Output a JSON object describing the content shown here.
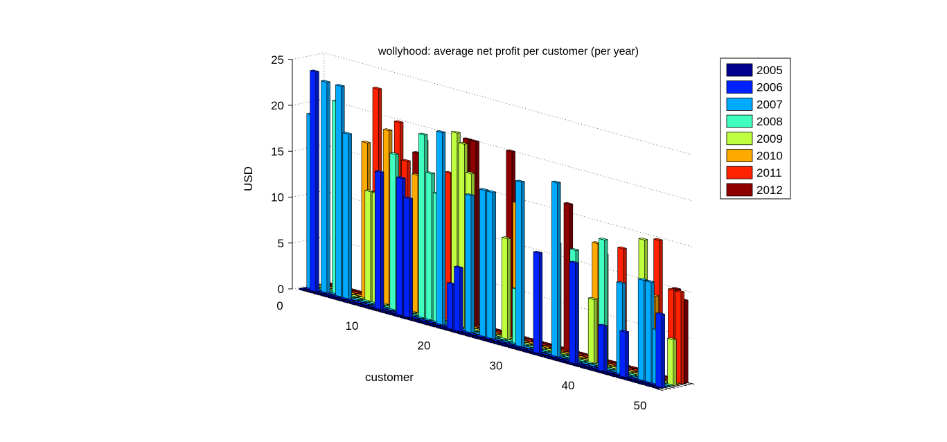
{
  "chart_data": {
    "type": "bar3d",
    "title": "wollyhood: average net profit per customer (per year)",
    "xlabel": "customer",
    "ylabel": "",
    "zlabel": "USD",
    "xlim": [
      0,
      50
    ],
    "zlim": [
      0,
      25
    ],
    "x_ticks": [
      0,
      10,
      20,
      30,
      40,
      50
    ],
    "z_ticks": [
      0,
      5,
      10,
      15,
      20,
      25
    ],
    "legend_position": "right",
    "grid": true,
    "series": [
      {
        "name": "2005",
        "color": "#00008f",
        "values": [
          0,
          0,
          0,
          0,
          0,
          0,
          0,
          0,
          0,
          0,
          0,
          0,
          0,
          0,
          0,
          0,
          0,
          0,
          0,
          0,
          0,
          0,
          0,
          0,
          0,
          0,
          0,
          0,
          0,
          0,
          0,
          0,
          0,
          0,
          0,
          0,
          0,
          0,
          0,
          0,
          0,
          0,
          0,
          0,
          0,
          0,
          0,
          0,
          0,
          0
        ]
      },
      {
        "name": "2006",
        "color": "#0022ff",
        "values": [
          0,
          24,
          0,
          0,
          0,
          0,
          0,
          0,
          0,
          0,
          15,
          0,
          0,
          15,
          13,
          0,
          0,
          0,
          0,
          0,
          5,
          7,
          0,
          0,
          0,
          0,
          0,
          0,
          0,
          0,
          0,
          0,
          11,
          0,
          0,
          0,
          0,
          11,
          0,
          0,
          0,
          5,
          0,
          0,
          5,
          0,
          0,
          0,
          0,
          8
        ]
      },
      {
        "name": "2007",
        "color": "#00aaff",
        "values": [
          19,
          0,
          23,
          0,
          23,
          18,
          0,
          0,
          0,
          0,
          0,
          0,
          0,
          0,
          0,
          0,
          0,
          0,
          21,
          0,
          0,
          0,
          15,
          0,
          16,
          16,
          0,
          0,
          0,
          18,
          0,
          0,
          0,
          0,
          19,
          0,
          0,
          0,
          0,
          0,
          0,
          0,
          0,
          10,
          0,
          0,
          11,
          11,
          6,
          0
        ]
      },
      {
        "name": "2008",
        "color": "#40ffc0",
        "values": [
          0,
          0,
          0,
          21,
          0,
          0,
          0,
          0,
          0,
          0,
          0,
          17,
          0,
          0,
          0,
          20,
          16,
          14,
          0,
          0,
          0,
          0,
          0,
          0,
          0,
          0,
          0,
          0,
          6,
          0,
          0,
          0,
          0,
          0,
          0,
          0,
          12,
          0,
          0,
          0,
          14,
          0,
          0,
          0,
          0,
          0,
          0,
          0,
          0,
          0
        ]
      },
      {
        "name": "2009",
        "color": "#c0ff40",
        "values": [
          0,
          0,
          0,
          0,
          0,
          0,
          0,
          12,
          12,
          0,
          0,
          0,
          0,
          0,
          0,
          0,
          0,
          0,
          0,
          21,
          20,
          17,
          0,
          0,
          0,
          0,
          11,
          0,
          0,
          0,
          0,
          0,
          0,
          12,
          0,
          0,
          0,
          0,
          7,
          0,
          0,
          0,
          0,
          0,
          0,
          15,
          0,
          0,
          0,
          5
        ]
      },
      {
        "name": "2010",
        "color": "#ffaa00",
        "values": [
          0,
          0,
          0,
          0,
          0,
          0,
          17,
          0,
          0,
          19,
          0,
          0,
          0,
          15,
          19,
          0,
          0,
          0,
          0,
          0,
          0,
          0,
          0,
          0,
          0,
          0,
          0,
          15,
          0,
          0,
          0,
          0,
          0,
          0,
          0,
          0,
          0,
          0,
          13,
          12,
          0,
          0,
          0,
          0,
          0,
          0,
          9,
          0,
          0,
          0
        ]
      },
      {
        "name": "2011",
        "color": "#ff2200",
        "values": [
          0,
          0,
          0,
          0,
          0,
          0,
          0,
          23,
          0,
          0,
          20,
          16,
          0,
          0,
          0,
          0,
          0,
          16,
          0,
          0,
          0,
          0,
          0,
          0,
          0,
          0,
          0,
          0,
          0,
          0,
          0,
          0,
          0,
          0,
          0,
          0,
          0,
          0,
          0,
          0,
          0,
          13,
          0,
          0,
          0,
          0,
          15,
          0,
          10,
          10
        ]
      },
      {
        "name": "2012",
        "color": "#8f0000",
        "values": [
          0,
          0,
          0,
          0,
          0,
          0,
          0,
          0,
          12,
          0,
          0,
          0,
          17,
          0,
          0,
          0,
          0,
          0,
          0,
          20,
          20,
          0,
          0,
          0,
          0,
          20,
          0,
          0,
          0,
          0,
          0,
          0,
          0,
          16,
          0,
          0,
          0,
          0,
          0,
          0,
          0,
          0,
          0,
          0,
          0,
          0,
          0,
          0,
          10,
          9
        ]
      }
    ]
  }
}
